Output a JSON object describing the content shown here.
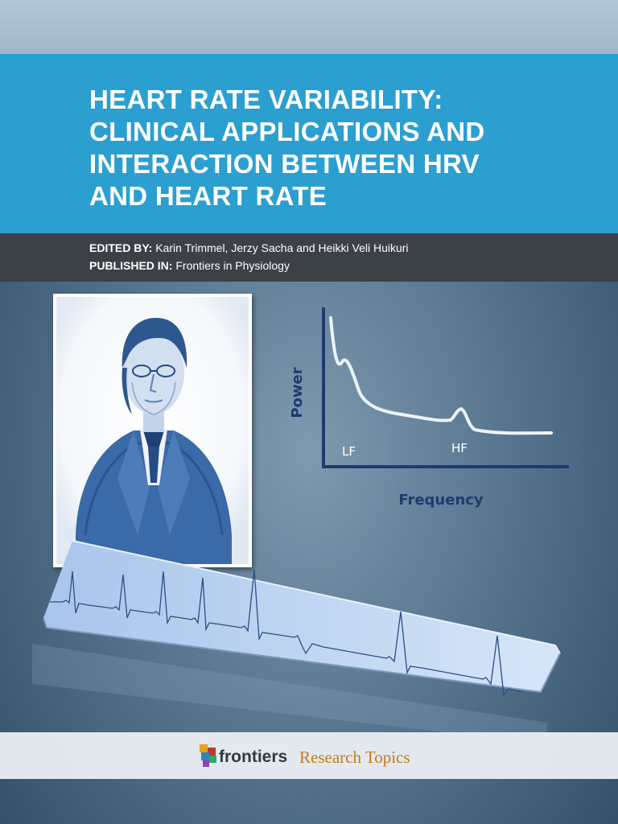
{
  "book": {
    "title": "HEART RATE VARIABILITY:\nCLINICAL APPLICATIONS AND\nINTERACTION BETWEEN HRV\nAND HEART RATE",
    "edited_by_label": "EDITED BY",
    "editors": "Karin Trimmel, Jerzy Sacha and Heikki Veli Huikuri",
    "published_in_label": "PUBLISHED IN",
    "journal": "Frontiers in Physiology"
  },
  "figure": {
    "y_label": "Power",
    "x_label": "Frequency",
    "lf_label": "LF",
    "hf_label": "HF"
  },
  "footer": {
    "brand": "frontiers",
    "subtitle": "Research Topics"
  },
  "colors": {
    "title_band": "#2b9fd0",
    "credit_band": "#3b4146",
    "brand_orange": "#c67a1d",
    "axis_navy": "#1d3b6e"
  },
  "icons": [
    "frontiers-logo-icon"
  ]
}
